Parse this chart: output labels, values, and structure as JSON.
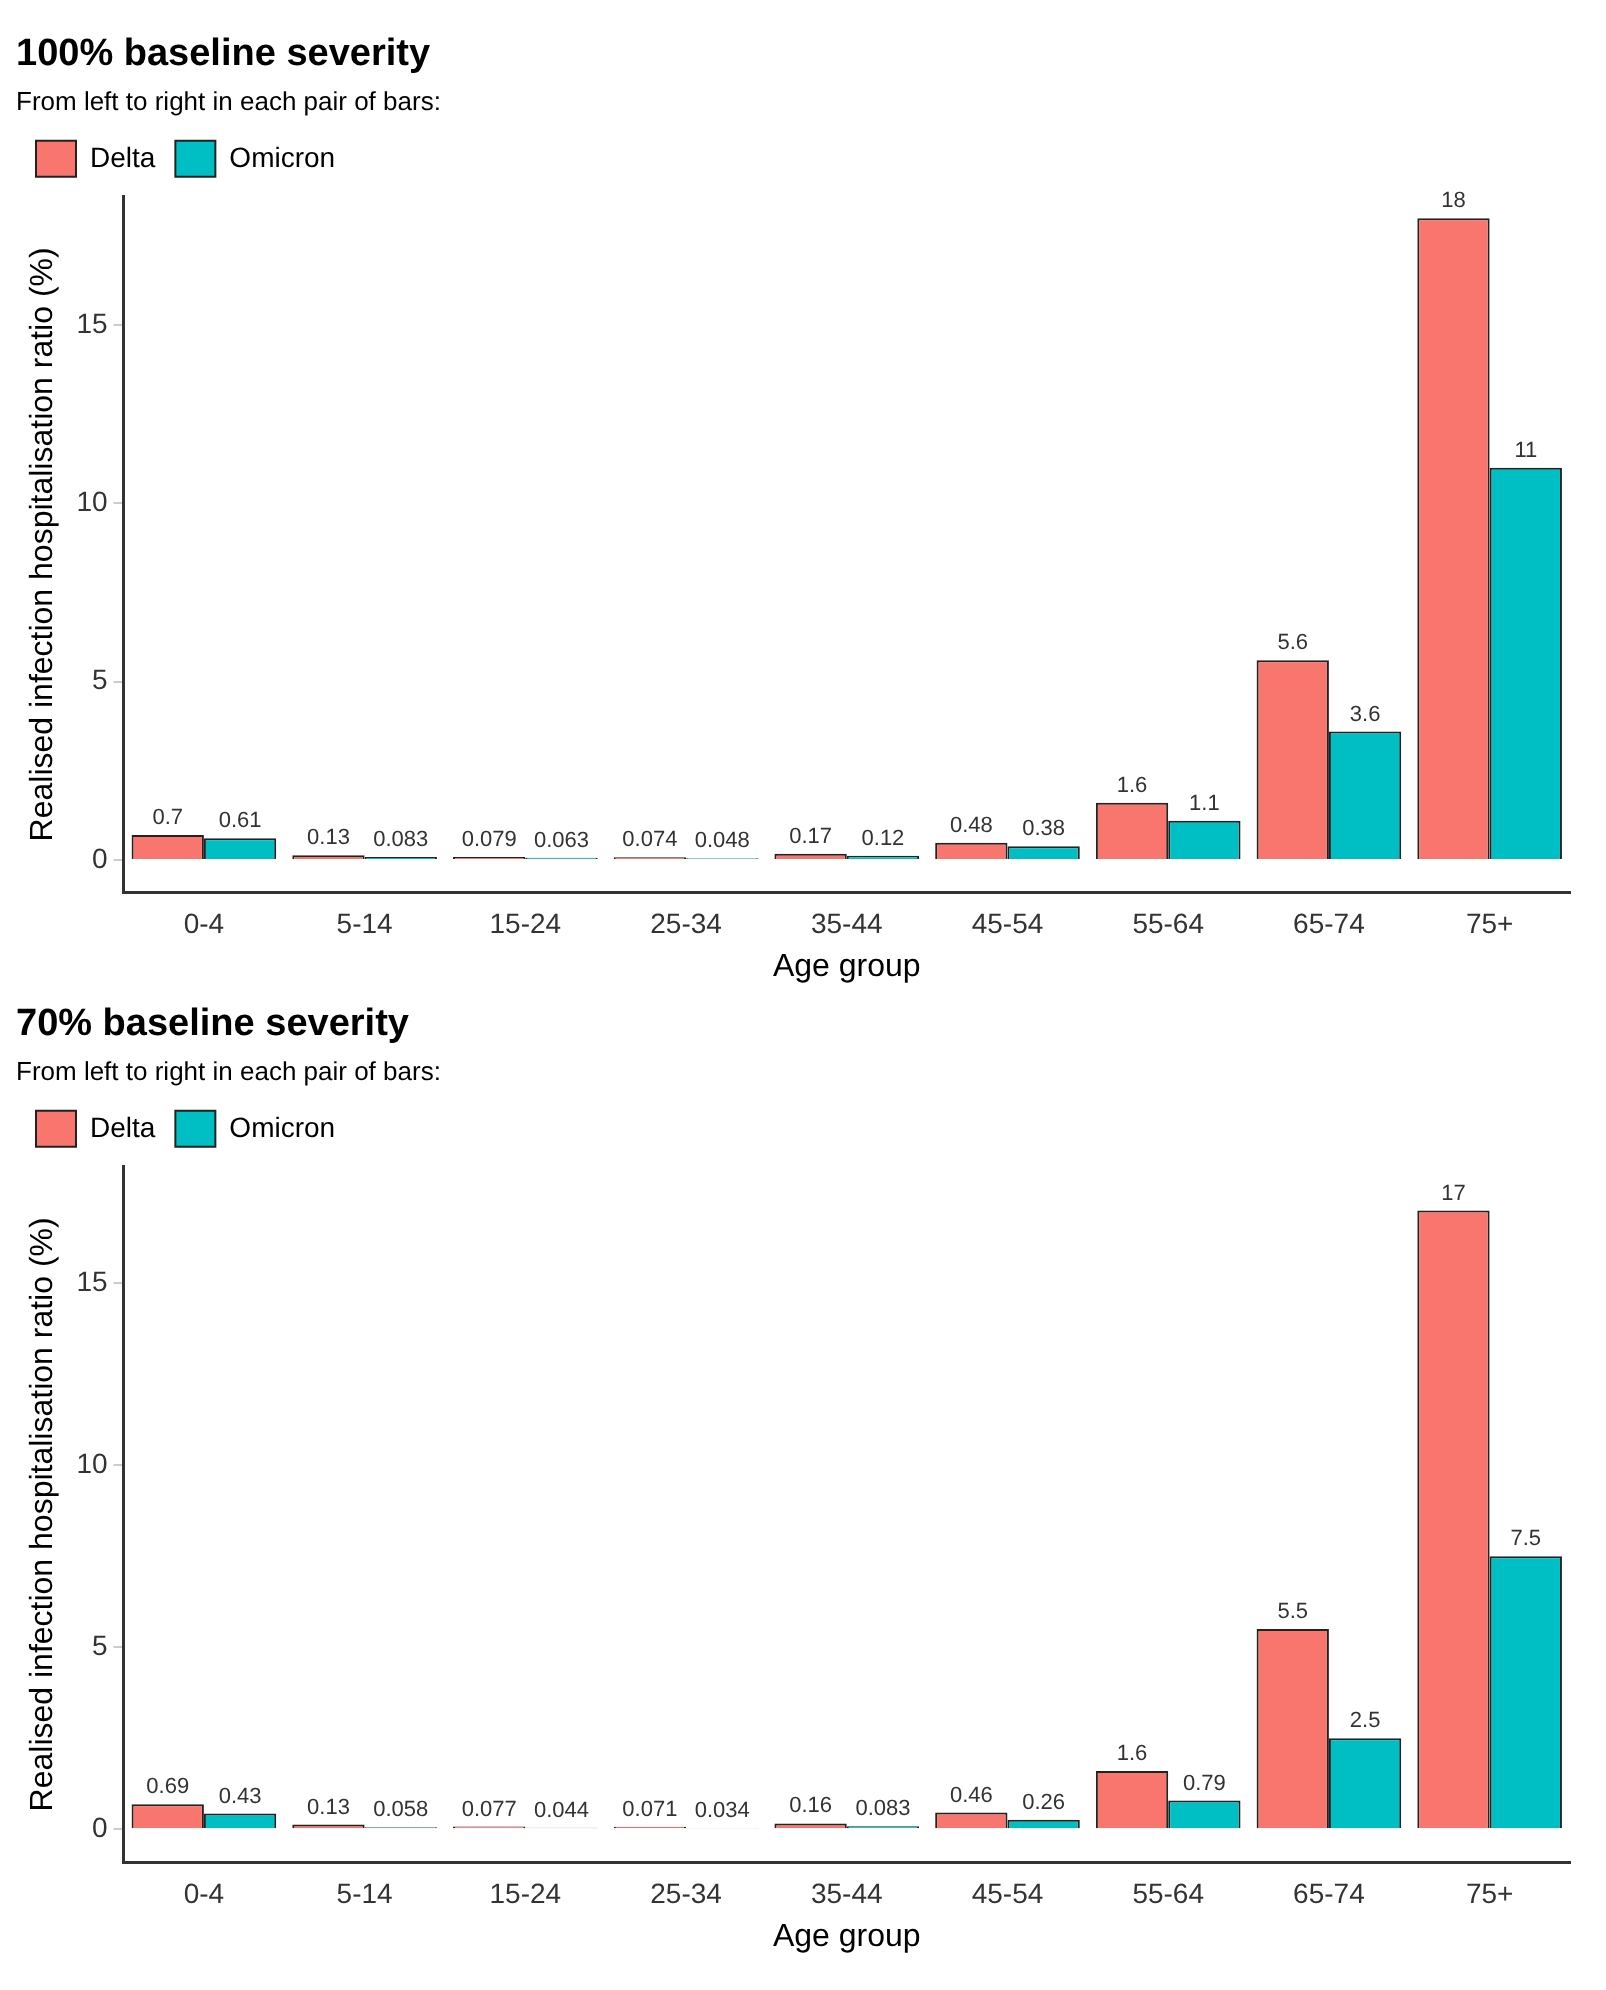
{
  "chart_data": [
    {
      "type": "bar",
      "title": "100% baseline severity",
      "xlabel": "Age group",
      "ylabel": "Realised infection hospitalisation ratio (%)",
      "legend_title": "From left to right in each pair of bars:",
      "categories": [
        "0-4",
        "5-14",
        "15-24",
        "25-34",
        "35-44",
        "45-54",
        "55-64",
        "65-74",
        "75+"
      ],
      "series": [
        {
          "name": "Delta",
          "color": "#f8766d",
          "values": [
            0.7,
            0.13,
            0.079,
            0.074,
            0.17,
            0.48,
            1.6,
            5.6,
            18
          ]
        },
        {
          "name": "Omicron",
          "color": "#00bfc4",
          "values": [
            0.61,
            0.083,
            0.063,
            0.048,
            0.12,
            0.38,
            1.1,
            3.6,
            11
          ]
        }
      ],
      "ylim": [
        -0.9,
        18.6
      ],
      "yticks": [
        0,
        5,
        10,
        15
      ],
      "grid": false,
      "legend": "top left",
      "data_labels": true
    },
    {
      "type": "bar",
      "title": "70% baseline severity",
      "xlabel": "Age group",
      "ylabel": "Realised infection hospitalisation ratio (%)",
      "legend_title": "From left to right in each pair of bars:",
      "categories": [
        "0-4",
        "5-14",
        "15-24",
        "25-34",
        "35-44",
        "45-54",
        "55-64",
        "65-74",
        "75+"
      ],
      "series": [
        {
          "name": "Delta",
          "color": "#f8766d",
          "values": [
            0.69,
            0.13,
            0.077,
            0.071,
            0.16,
            0.46,
            1.6,
            5.5,
            17
          ]
        },
        {
          "name": "Omicron",
          "color": "#00bfc4",
          "values": [
            0.43,
            0.058,
            0.044,
            0.034,
            0.083,
            0.26,
            0.79,
            2.5,
            7.5
          ]
        }
      ],
      "ylim": [
        -0.9,
        18.2
      ],
      "yticks": [
        0,
        5,
        10,
        15
      ],
      "grid": false,
      "legend": "top left",
      "data_labels": true
    }
  ]
}
